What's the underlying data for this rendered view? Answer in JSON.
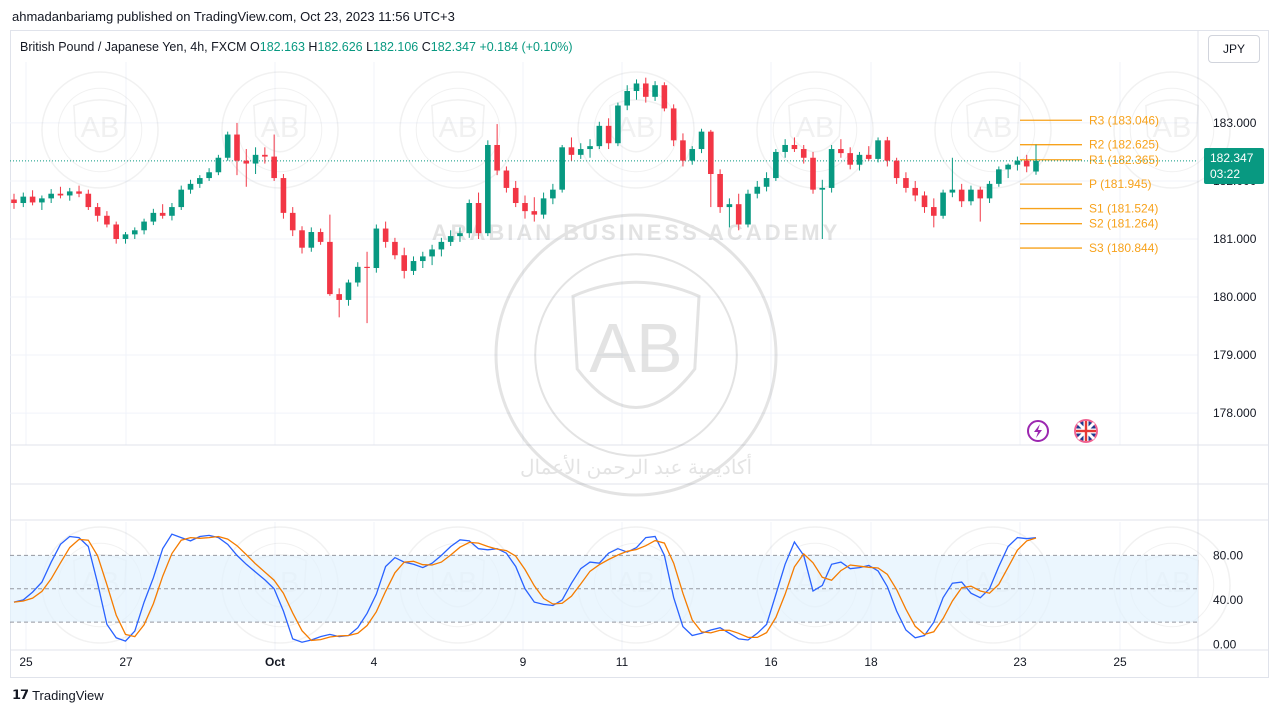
{
  "header": {
    "credit": "ahmadanbariamg published on TradingView.com, Oct 23, 2023 11:56 UTC+3"
  },
  "legend": {
    "symbol": "British Pound / Japanese Yen, 4h, FXCM",
    "open_label": "O",
    "open": "182.163",
    "high_label": "H",
    "high": "182.626",
    "low_label": "L",
    "low": "182.106",
    "close_label": "C",
    "close": "182.347",
    "change": "+0.184 (+0.10%)"
  },
  "currency_button": "JPY",
  "price_tag": {
    "price": "182.347",
    "countdown": "03:22"
  },
  "footer": {
    "brand": "TradingView"
  },
  "watermark": {
    "arc_text": "ARABIAN BUSINESS ACADEMY",
    "monogram": "AB",
    "arabic_text": "أكاديمية عبد الرحمن الأعمال"
  },
  "colors": {
    "up": "#089981",
    "down": "#f23645",
    "pivot": "#f7a21b",
    "stoch_k": "#2962ff",
    "stoch_d": "#f57c00",
    "band": "#e3f2fd"
  },
  "chart_data": [
    {
      "type": "candlestick",
      "symbol": "GBPJPY",
      "timeframe": "4h",
      "y_ticks": [
        "183.000",
        "182.000",
        "181.000",
        "180.000",
        "179.000",
        "178.000"
      ],
      "ylim": [
        177.45,
        184.05
      ],
      "x_ticks": [
        "25",
        "27",
        "Oct",
        "4",
        "9",
        "11",
        "16",
        "18",
        "23",
        "25"
      ],
      "current_price": 182.347,
      "candles_ohlc": [
        [
          181.68,
          181.78,
          181.52,
          181.62
        ],
        [
          181.62,
          181.8,
          181.55,
          181.73
        ],
        [
          181.73,
          181.84,
          181.58,
          181.63
        ],
        [
          181.63,
          181.75,
          181.5,
          181.7
        ],
        [
          181.7,
          181.86,
          181.62,
          181.78
        ],
        [
          181.78,
          181.9,
          181.7,
          181.75
        ],
        [
          181.75,
          181.88,
          181.66,
          181.82
        ],
        [
          181.82,
          181.92,
          181.72,
          181.78
        ],
        [
          181.78,
          181.85,
          181.5,
          181.55
        ],
        [
          181.55,
          181.62,
          181.3,
          181.4
        ],
        [
          181.4,
          181.48,
          181.2,
          181.25
        ],
        [
          181.25,
          181.3,
          180.92,
          181.0
        ],
        [
          181.0,
          181.12,
          180.92,
          181.08
        ],
        [
          181.08,
          181.2,
          181.0,
          181.15
        ],
        [
          181.15,
          181.35,
          181.08,
          181.3
        ],
        [
          181.3,
          181.52,
          181.24,
          181.45
        ],
        [
          181.45,
          181.6,
          181.35,
          181.4
        ],
        [
          181.4,
          181.62,
          181.32,
          181.55
        ],
        [
          181.55,
          181.92,
          181.5,
          181.85
        ],
        [
          181.85,
          182.02,
          181.78,
          181.95
        ],
        [
          181.95,
          182.1,
          181.88,
          182.05
        ],
        [
          182.05,
          182.22,
          182.0,
          182.15
        ],
        [
          182.15,
          182.45,
          182.1,
          182.4
        ],
        [
          182.4,
          182.85,
          182.35,
          182.8
        ],
        [
          182.8,
          183.0,
          182.1,
          182.35
        ],
        [
          182.35,
          182.55,
          181.9,
          182.3
        ],
        [
          182.3,
          182.58,
          182.12,
          182.45
        ],
        [
          182.45,
          182.58,
          182.3,
          182.42
        ],
        [
          182.42,
          182.8,
          182.0,
          182.05
        ],
        [
          182.05,
          182.12,
          181.35,
          181.45
        ],
        [
          181.45,
          181.55,
          181.05,
          181.15
        ],
        [
          181.15,
          181.22,
          180.75,
          180.85
        ],
        [
          180.85,
          181.2,
          180.78,
          181.12
        ],
        [
          181.12,
          181.18,
          180.9,
          180.95
        ],
        [
          180.95,
          181.42,
          180.02,
          180.05
        ],
        [
          180.05,
          180.15,
          179.65,
          179.95
        ],
        [
          179.95,
          180.3,
          179.85,
          180.25
        ],
        [
          180.25,
          180.6,
          180.18,
          180.52
        ],
        [
          180.52,
          180.78,
          179.55,
          180.5
        ],
        [
          180.5,
          181.25,
          180.42,
          181.18
        ],
        [
          181.18,
          181.3,
          180.85,
          180.95
        ],
        [
          180.95,
          181.02,
          180.65,
          180.72
        ],
        [
          180.72,
          180.85,
          180.32,
          180.45
        ],
        [
          180.45,
          180.7,
          180.38,
          180.62
        ],
        [
          180.62,
          180.78,
          180.5,
          180.7
        ],
        [
          180.7,
          180.9,
          180.55,
          180.82
        ],
        [
          180.82,
          181.02,
          180.7,
          180.95
        ],
        [
          180.95,
          181.15,
          180.88,
          181.05
        ],
        [
          181.05,
          181.2,
          180.95,
          181.1
        ],
        [
          181.1,
          181.68,
          181.02,
          181.62
        ],
        [
          181.62,
          181.8,
          181.0,
          181.1
        ],
        [
          181.1,
          182.7,
          181.05,
          182.62
        ],
        [
          182.62,
          182.98,
          182.1,
          182.18
        ],
        [
          182.18,
          182.25,
          181.8,
          181.88
        ],
        [
          181.88,
          182.0,
          181.55,
          181.62
        ],
        [
          181.62,
          181.75,
          181.35,
          181.48
        ],
        [
          181.48,
          181.72,
          181.3,
          181.42
        ],
        [
          181.42,
          181.8,
          181.35,
          181.7
        ],
        [
          181.7,
          181.95,
          181.6,
          181.85
        ],
        [
          181.85,
          182.62,
          181.8,
          182.58
        ],
        [
          182.58,
          182.75,
          182.35,
          182.45
        ],
        [
          182.45,
          182.65,
          182.38,
          182.55
        ],
        [
          182.55,
          182.72,
          182.4,
          182.6
        ],
        [
          182.6,
          183.02,
          182.55,
          182.95
        ],
        [
          182.95,
          183.08,
          182.55,
          182.65
        ],
        [
          182.65,
          183.35,
          182.6,
          183.3
        ],
        [
          183.3,
          183.65,
          183.22,
          183.55
        ],
        [
          183.55,
          183.75,
          183.4,
          183.68
        ],
        [
          183.68,
          183.78,
          183.35,
          183.45
        ],
        [
          183.45,
          183.72,
          183.38,
          183.65
        ],
        [
          183.65,
          183.7,
          183.2,
          183.25
        ],
        [
          183.25,
          183.32,
          182.6,
          182.7
        ],
        [
          182.7,
          182.82,
          182.25,
          182.35
        ],
        [
          182.35,
          182.6,
          182.28,
          182.55
        ],
        [
          182.55,
          182.9,
          182.48,
          182.85
        ],
        [
          182.85,
          182.88,
          181.55,
          182.12
        ],
        [
          182.12,
          182.2,
          181.45,
          181.55
        ],
        [
          181.55,
          181.7,
          181.2,
          181.6
        ],
        [
          181.6,
          181.78,
          181.15,
          181.25
        ],
        [
          181.25,
          181.85,
          181.2,
          181.78
        ],
        [
          181.78,
          182.0,
          181.7,
          181.9
        ],
        [
          181.9,
          182.15,
          181.82,
          182.05
        ],
        [
          182.05,
          182.55,
          182.0,
          182.5
        ],
        [
          182.5,
          182.72,
          182.4,
          182.62
        ],
        [
          182.62,
          182.75,
          182.5,
          182.55
        ],
        [
          182.55,
          182.62,
          182.3,
          182.4
        ],
        [
          182.4,
          182.5,
          181.78,
          181.85
        ],
        [
          181.85,
          182.02,
          181.0,
          181.88
        ],
        [
          181.88,
          182.62,
          181.8,
          182.55
        ],
        [
          182.55,
          182.72,
          182.4,
          182.48
        ],
        [
          182.48,
          182.58,
          182.2,
          182.28
        ],
        [
          182.28,
          182.5,
          182.18,
          182.45
        ],
        [
          182.45,
          182.6,
          182.35,
          182.38
        ],
        [
          182.38,
          182.75,
          182.32,
          182.7
        ],
        [
          182.7,
          182.76,
          182.25,
          182.35
        ],
        [
          182.35,
          182.4,
          181.95,
          182.05
        ],
        [
          182.05,
          182.15,
          181.8,
          181.88
        ],
        [
          181.88,
          182.0,
          181.65,
          181.75
        ],
        [
          181.75,
          181.82,
          181.45,
          181.55
        ],
        [
          181.55,
          181.7,
          181.2,
          181.4
        ],
        [
          181.4,
          181.85,
          181.35,
          181.8
        ],
        [
          181.8,
          182.4,
          181.72,
          181.85
        ],
        [
          181.85,
          181.95,
          181.55,
          181.65
        ],
        [
          181.65,
          181.92,
          181.58,
          181.85
        ],
        [
          181.85,
          181.9,
          181.3,
          181.7
        ],
        [
          181.7,
          182.0,
          181.62,
          181.95
        ],
        [
          181.95,
          182.25,
          181.9,
          182.2
        ],
        [
          182.2,
          182.3,
          182.05,
          182.28
        ],
        [
          182.28,
          182.42,
          182.18,
          182.35
        ],
        [
          182.35,
          182.45,
          182.15,
          182.25
        ],
        [
          182.163,
          182.626,
          182.106,
          182.347
        ]
      ],
      "pivot_levels": [
        {
          "label": "R3",
          "value": 183.046,
          "text": "R3 (183.046)"
        },
        {
          "label": "R2",
          "value": 182.625,
          "text": "R2 (182.625)"
        },
        {
          "label": "R1",
          "value": 182.365,
          "text": "R1 (182.365)"
        },
        {
          "label": "P",
          "value": 181.945,
          "text": "P (181.945)"
        },
        {
          "label": "S1",
          "value": 181.524,
          "text": "S1 (181.524)"
        },
        {
          "label": "S2",
          "value": 181.264,
          "text": "S2 (181.264)"
        },
        {
          "label": "S3",
          "value": 180.844,
          "text": "S3 (180.844)"
        }
      ]
    },
    {
      "type": "line",
      "indicator": "stochastic",
      "y_ticks": [
        "80.00",
        "40.00",
        "0.00"
      ],
      "ylim": [
        -5,
        110
      ],
      "band": [
        20,
        80
      ],
      "levels": [
        20,
        50,
        80
      ],
      "series": [
        {
          "values": [
            38,
            40,
            47,
            56,
            74,
            90,
            97,
            96,
            88,
            55,
            18,
            6,
            3,
            12,
            38,
            60,
            86,
            99,
            96,
            93,
            97,
            98,
            96,
            90,
            80,
            72,
            65,
            58,
            50,
            30,
            5,
            2,
            4,
            7,
            9,
            7,
            8,
            15,
            28,
            45,
            70,
            78,
            74,
            72,
            69,
            73,
            80,
            88,
            94,
            93,
            86,
            85,
            86,
            82,
            70,
            50,
            38,
            36,
            35,
            40,
            55,
            68,
            74,
            73,
            82,
            86,
            83,
            87,
            96,
            97,
            80,
            42,
            16,
            8,
            10,
            13,
            15,
            10,
            5,
            4,
            10,
            18,
            45,
            72,
            92,
            80,
            48,
            53,
            72,
            74,
            68,
            69,
            71,
            66,
            52,
            30,
            13,
            6,
            8,
            20,
            42,
            55,
            56,
            46,
            42,
            50,
            70,
            88,
            96,
            95,
            96
          ]
        }
      ]
    }
  ]
}
